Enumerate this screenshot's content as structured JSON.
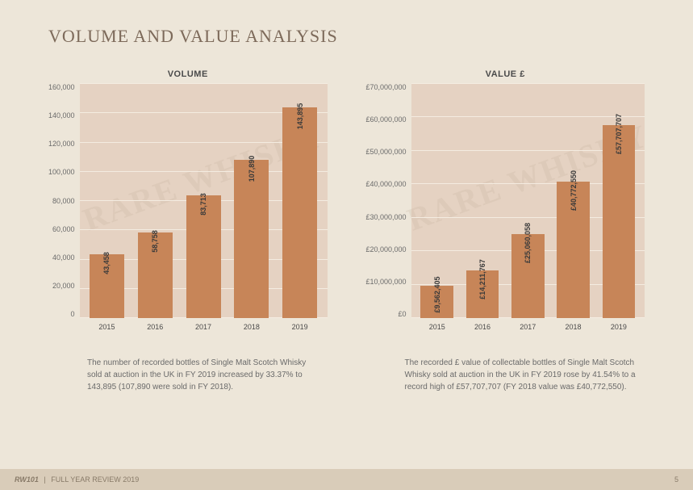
{
  "page": {
    "title": "VOLUME AND VALUE ANALYSIS",
    "background_color": "#ede6d9"
  },
  "volume_chart": {
    "type": "bar",
    "title": "VOLUME",
    "categories": [
      "2015",
      "2016",
      "2017",
      "2018",
      "2019"
    ],
    "values": [
      43458,
      58758,
      83713,
      107890,
      143895
    ],
    "bar_labels": [
      "43,458",
      "58,758",
      "83,713",
      "107,890",
      "143,895"
    ],
    "bar_color": "#c78558",
    "plot_bg": "#e5d2c2",
    "grid_color": "#f4ece1",
    "ylim": [
      0,
      160000
    ],
    "ytick_step": 20000,
    "yticks": [
      "160,000",
      "140,000",
      "120,000",
      "100,000",
      "80,000",
      "60,000",
      "40,000",
      "20,000",
      "0"
    ],
    "caption": "The number of recorded bottles of Single Malt Scotch Whisky sold at auction in the UK in FY 2019 increased by 33.37% to 143,895 (107,890 were sold in FY 2018)."
  },
  "value_chart": {
    "type": "bar",
    "title": "VALUE £",
    "categories": [
      "2015",
      "2016",
      "2017",
      "2018",
      "2019"
    ],
    "values": [
      9562405,
      14211767,
      25060058,
      40772550,
      57707707
    ],
    "bar_labels": [
      "£9,562,405",
      "£14,211,767",
      "£25,060,058",
      "£40,772,550",
      "£57,707,707"
    ],
    "bar_color": "#c78558",
    "plot_bg": "#e5d2c2",
    "grid_color": "#f4ece1",
    "ylim": [
      0,
      70000000
    ],
    "ytick_step": 10000000,
    "yticks": [
      "£70,000,000",
      "£60,000,000",
      "£50,000,000",
      "£40,000,000",
      "£30,000,000",
      "£20,000,000",
      "£10,000,000",
      "£0"
    ],
    "caption": "The recorded £ value of collectable bottles of Single Malt Scotch Whisky sold at auction in the UK in FY 2019 rose by 41.54% to a record high of £57,707,707 (FY 2018 value was £40,772,550)."
  },
  "watermark_text": "RARE WHISKY",
  "footer": {
    "brand": "RW101",
    "text": "FULL YEAR REVIEW 2019",
    "page_number": "5"
  }
}
